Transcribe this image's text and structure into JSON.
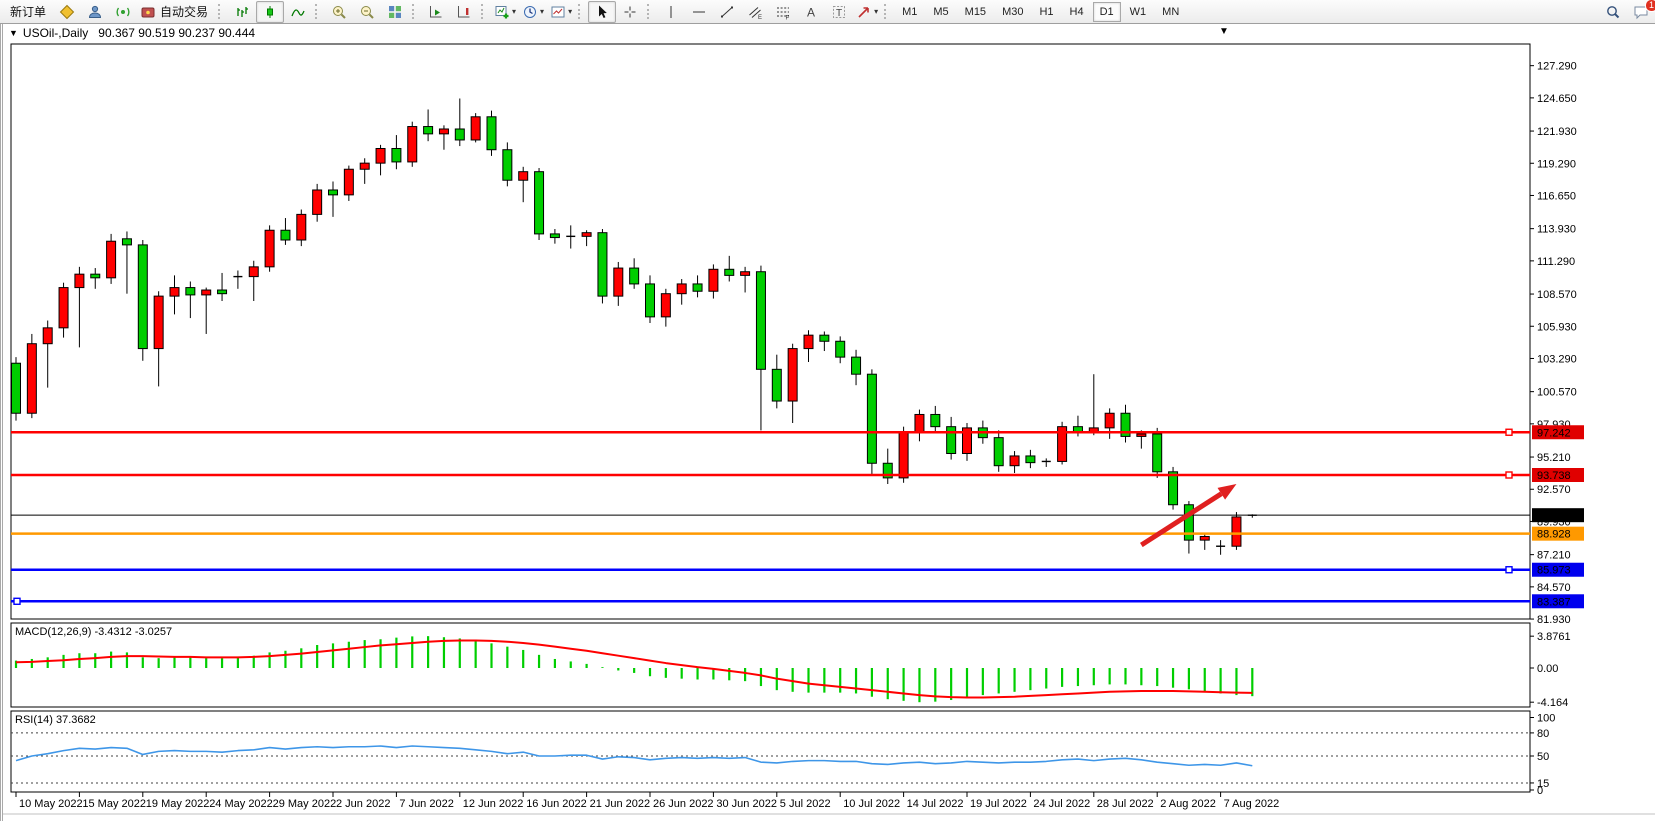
{
  "toolbar": {
    "new_order_label": "新订单",
    "auto_trading_label": "自动交易",
    "timeframes": [
      "M1",
      "M5",
      "M15",
      "M30",
      "H1",
      "H4",
      "D1",
      "W1",
      "MN"
    ],
    "active_timeframe": "D1",
    "notification_count": "1"
  },
  "chart": {
    "expander": "▼",
    "shift_marker": "▼",
    "symbol_period": "USOil-,Daily",
    "ohlc": "90.367 90.519 90.237 90.444"
  },
  "indicators": {
    "macd_label": "MACD(12,26,9) -3.4312 -3.0257",
    "rsi_label": "RSI(14) 37.3682"
  },
  "axes": {
    "price_ticks": [
      "127.290",
      "124.650",
      "121.930",
      "119.290",
      "116.650",
      "113.930",
      "111.290",
      "108.570",
      "105.930",
      "103.290",
      "100.570",
      "97.930",
      "95.210",
      "92.570",
      "89.930",
      "87.210",
      "84.570",
      "81.930"
    ],
    "macd_ticks": [
      "3.8761",
      "0.00",
      "-4.164"
    ],
    "rsi_ticks": [
      "100",
      "80",
      "50",
      "15",
      "0"
    ],
    "dates": [
      "10 May 2022",
      "15 May 2022",
      "19 May 2022",
      "24 May 2022",
      "29 May 2022",
      "2 Jun 2022",
      "7 Jun 2022",
      "12 Jun 2022",
      "16 Jun 2022",
      "21 Jun 2022",
      "26 Jun 2022",
      "30 Jun 2022",
      "5 Jul 2022",
      "10 Jul 2022",
      "14 Jul 2022",
      "19 Jul 2022",
      "24 Jul 2022",
      "28 Jul 2022",
      "2 Aug 2022",
      "7 Aug 2022"
    ]
  },
  "chart_data": {
    "type": "candlestick",
    "symbol": "USOil-",
    "timeframe": "Daily",
    "current_bar": {
      "open": 90.367,
      "high": 90.519,
      "low": 90.237,
      "close": 90.444
    },
    "up_color": "#FF0000",
    "down_color": "#00CE00",
    "ylim": [
      81.93,
      129.0
    ],
    "candles": [
      [
        102.9,
        103.4,
        98.2,
        98.8
      ],
      [
        98.8,
        105.3,
        98.4,
        104.5
      ],
      [
        104.5,
        106.4,
        100.9,
        105.8
      ],
      [
        105.8,
        109.5,
        105.0,
        109.1
      ],
      [
        109.1,
        110.8,
        104.2,
        110.2
      ],
      [
        110.2,
        110.7,
        109.0,
        109.9
      ],
      [
        109.9,
        113.5,
        109.4,
        112.9
      ],
      [
        113.1,
        113.7,
        108.6,
        112.6
      ],
      [
        112.6,
        113.0,
        103.1,
        104.1
      ],
      [
        104.1,
        108.8,
        101.0,
        108.4
      ],
      [
        108.4,
        110.1,
        106.9,
        109.1
      ],
      [
        109.1,
        109.6,
        106.6,
        108.5
      ],
      [
        108.5,
        109.1,
        105.3,
        108.9
      ],
      [
        108.9,
        110.3,
        108.0,
        108.6
      ],
      [
        109.9,
        110.5,
        109.0,
        110.0
      ],
      [
        110.0,
        111.3,
        108.0,
        110.8
      ],
      [
        110.8,
        114.2,
        110.4,
        113.8
      ],
      [
        113.8,
        114.8,
        112.6,
        113.0
      ],
      [
        113.0,
        115.5,
        112.5,
        115.1
      ],
      [
        115.1,
        117.6,
        114.5,
        117.1
      ],
      [
        117.1,
        117.8,
        114.9,
        116.7
      ],
      [
        116.7,
        119.1,
        116.2,
        118.8
      ],
      [
        118.8,
        119.7,
        117.6,
        119.3
      ],
      [
        119.3,
        120.8,
        118.3,
        120.5
      ],
      [
        120.5,
        121.6,
        118.8,
        119.4
      ],
      [
        119.4,
        122.7,
        119.0,
        122.3
      ],
      [
        122.3,
        123.7,
        121.1,
        121.7
      ],
      [
        121.7,
        122.4,
        120.4,
        122.1
      ],
      [
        122.1,
        124.6,
        120.7,
        121.2
      ],
      [
        121.2,
        123.4,
        121.0,
        123.1
      ],
      [
        123.1,
        123.6,
        119.9,
        120.4
      ],
      [
        120.4,
        121.0,
        117.4,
        117.9
      ],
      [
        117.9,
        119.0,
        116.1,
        118.6
      ],
      [
        118.6,
        118.9,
        113.0,
        113.5
      ],
      [
        113.5,
        113.9,
        112.7,
        113.2
      ],
      [
        113.2,
        114.2,
        112.3,
        113.3
      ],
      [
        113.3,
        113.8,
        112.5,
        113.6
      ],
      [
        113.6,
        113.9,
        107.8,
        108.4
      ],
      [
        108.4,
        111.2,
        107.6,
        110.7
      ],
      [
        110.7,
        111.5,
        109.0,
        109.4
      ],
      [
        109.4,
        110.1,
        106.2,
        106.7
      ],
      [
        106.7,
        109.0,
        105.9,
        108.6
      ],
      [
        108.6,
        109.8,
        107.7,
        109.4
      ],
      [
        109.4,
        110.1,
        108.3,
        108.8
      ],
      [
        108.8,
        111.0,
        108.2,
        110.6
      ],
      [
        110.6,
        111.7,
        109.6,
        110.1
      ],
      [
        110.1,
        110.8,
        108.7,
        110.4
      ],
      [
        110.4,
        110.9,
        97.4,
        102.4
      ],
      [
        102.4,
        103.6,
        99.2,
        99.8
      ],
      [
        99.8,
        104.5,
        98.0,
        104.1
      ],
      [
        104.1,
        105.6,
        103.0,
        105.2
      ],
      [
        105.2,
        105.5,
        103.9,
        104.7
      ],
      [
        104.7,
        105.1,
        102.9,
        103.4
      ],
      [
        103.4,
        104.0,
        101.1,
        102.0
      ],
      [
        102.0,
        102.4,
        93.8,
        94.7
      ],
      [
        94.7,
        95.9,
        93.0,
        93.5
      ],
      [
        93.5,
        97.7,
        93.1,
        97.3
      ],
      [
        97.3,
        99.1,
        96.5,
        98.7
      ],
      [
        98.7,
        99.4,
        97.2,
        97.7
      ],
      [
        97.7,
        98.5,
        95.0,
        95.5
      ],
      [
        95.5,
        98.0,
        94.9,
        97.6
      ],
      [
        97.6,
        98.2,
        96.3,
        96.8
      ],
      [
        96.8,
        97.4,
        94.0,
        94.5
      ],
      [
        94.5,
        95.7,
        93.9,
        95.3
      ],
      [
        95.3,
        95.8,
        94.3,
        94.75
      ],
      [
        94.75,
        95.1,
        94.4,
        94.85
      ],
      [
        94.85,
        98.1,
        94.6,
        97.7
      ],
      [
        97.7,
        98.6,
        96.9,
        97.2
      ],
      [
        97.2,
        102.0,
        97.0,
        97.6
      ],
      [
        97.6,
        99.2,
        96.7,
        98.8
      ],
      [
        98.8,
        99.5,
        96.4,
        96.9
      ],
      [
        96.9,
        97.4,
        95.9,
        97.1
      ],
      [
        97.1,
        97.6,
        93.5,
        94.0
      ],
      [
        94.0,
        94.4,
        90.9,
        91.3
      ],
      [
        91.3,
        91.6,
        87.3,
        88.4
      ],
      [
        88.4,
        89.0,
        87.6,
        88.7
      ],
      [
        88.0,
        88.4,
        87.2,
        87.9
      ],
      [
        87.9,
        90.7,
        87.6,
        90.3
      ],
      [
        90.367,
        90.519,
        90.237,
        90.444
      ]
    ],
    "levels": [
      {
        "label": "97.242",
        "price": 97.242,
        "color": "#FF0000",
        "tag": "#E00000",
        "width": 2.5,
        "markers": [
          "right"
        ]
      },
      {
        "label": "93.738",
        "price": 93.738,
        "color": "#FF0000",
        "tag": "#E00000",
        "width": 2.5,
        "markers": [
          "right"
        ]
      },
      {
        "label": "90.444",
        "price": 90.444,
        "color": "#000000",
        "tag": "#000000",
        "width": 1,
        "markers": []
      },
      {
        "label": "88.928",
        "price": 88.928,
        "color": "#FF9900",
        "tag": "#FF9900",
        "width": 2.5,
        "markers": []
      },
      {
        "label": "85.973",
        "price": 85.973,
        "color": "#0000FF",
        "tag": "#0000EE",
        "width": 2.5,
        "markers": [
          "right"
        ]
      },
      {
        "label": "83.387",
        "price": 83.387,
        "color": "#0000FF",
        "tag": "#0000EE",
        "width": 2.5,
        "markers": [
          "left"
        ]
      }
    ],
    "annotations": [
      {
        "type": "arrow",
        "color": "#E02020",
        "from_bar": 71,
        "from_price": 88.0,
        "to_bar": 77,
        "to_price": 93.0,
        "meaning": "up arrow pointing to 88.9-90.4 support zone"
      }
    ],
    "macd": {
      "params": "12,26,9",
      "main_value": -3.4312,
      "signal_value": -3.0257,
      "range": [
        -4.164,
        3.8761
      ],
      "histogram_color": "#00CE00",
      "signal_color": "#FF0000",
      "histogram": [
        0.9,
        1.1,
        1.3,
        1.6,
        1.8,
        1.8,
        2.0,
        1.9,
        1.3,
        1.2,
        1.3,
        1.3,
        1.2,
        1.2,
        1.3,
        1.5,
        1.9,
        2.1,
        2.4,
        2.8,
        3.0,
        3.2,
        3.4,
        3.5,
        3.7,
        3.85,
        3.88,
        3.75,
        3.6,
        3.4,
        3.0,
        2.6,
        2.2,
        1.6,
        1.1,
        0.8,
        0.5,
        0.1,
        -0.3,
        -0.6,
        -1.0,
        -1.2,
        -1.3,
        -1.4,
        -1.4,
        -1.5,
        -1.6,
        -2.2,
        -2.7,
        -2.9,
        -3.0,
        -3.0,
        -3.0,
        -3.1,
        -3.5,
        -3.8,
        -4.0,
        -4.164,
        -4.1,
        -3.9,
        -3.6,
        -3.3,
        -3.1,
        -2.9,
        -2.7,
        -2.5,
        -2.3,
        -2.2,
        -2.1,
        -2.0,
        -2.0,
        -2.1,
        -2.2,
        -2.4,
        -2.6,
        -2.9,
        -3.1,
        -3.3,
        -3.4312
      ],
      "signal": [
        0.7,
        0.75,
        0.85,
        0.95,
        1.1,
        1.2,
        1.35,
        1.45,
        1.45,
        1.4,
        1.35,
        1.35,
        1.3,
        1.3,
        1.3,
        1.35,
        1.45,
        1.6,
        1.75,
        1.95,
        2.15,
        2.35,
        2.55,
        2.75,
        2.9,
        3.05,
        3.2,
        3.3,
        3.35,
        3.35,
        3.3,
        3.2,
        3.05,
        2.85,
        2.6,
        2.35,
        2.1,
        1.8,
        1.5,
        1.2,
        0.9,
        0.6,
        0.35,
        0.1,
        -0.1,
        -0.35,
        -0.6,
        -0.9,
        -1.3,
        -1.6,
        -1.9,
        -2.1,
        -2.3,
        -2.5,
        -2.7,
        -2.9,
        -3.1,
        -3.3,
        -3.45,
        -3.55,
        -3.6,
        -3.6,
        -3.55,
        -3.5,
        -3.4,
        -3.3,
        -3.2,
        -3.1,
        -3.0,
        -2.9,
        -2.85,
        -2.8,
        -2.8,
        -2.8,
        -2.85,
        -2.9,
        -2.95,
        -3.0,
        -3.0257
      ]
    },
    "rsi": {
      "period": 14,
      "value": 37.3682,
      "levels": [
        80,
        50,
        15
      ],
      "color": "#3E96E8",
      "values": [
        44,
        50,
        53,
        57,
        60,
        59,
        61,
        60,
        52,
        56,
        57,
        56,
        56,
        55,
        57,
        58,
        61,
        59,
        61,
        62,
        61,
        62,
        62,
        63,
        61,
        63,
        62,
        61,
        60,
        58,
        56,
        53,
        55,
        50,
        50,
        51,
        51,
        46,
        49,
        48,
        45,
        47,
        48,
        47,
        48,
        47,
        48,
        42,
        41,
        43,
        44,
        44,
        43,
        43,
        40,
        39,
        41,
        42,
        40,
        41,
        43,
        42,
        41,
        42,
        42,
        43,
        45,
        46,
        44,
        46,
        47,
        45,
        42,
        40,
        38,
        39,
        38,
        41,
        37.3682
      ]
    }
  }
}
